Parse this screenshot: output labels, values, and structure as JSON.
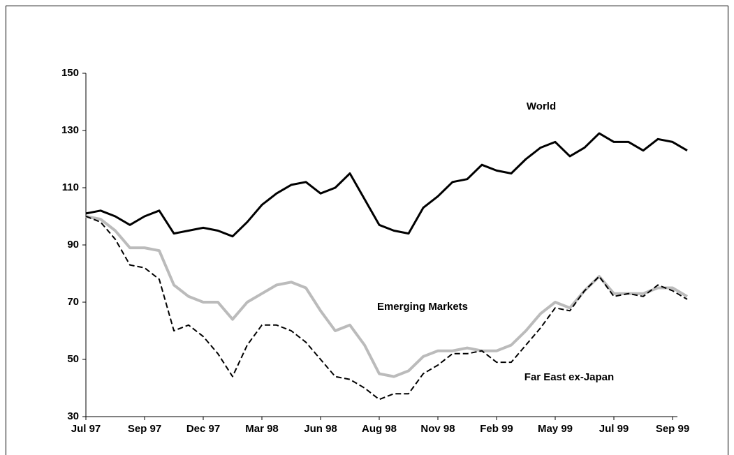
{
  "chart_data": {
    "type": "line",
    "categories": [
      "Jul 97",
      null,
      null,
      null,
      "Sep 97",
      null,
      null,
      null,
      "Dec 97",
      null,
      null,
      null,
      "Mar 98",
      null,
      null,
      null,
      "Jun 98",
      null,
      null,
      null,
      "Aug 98",
      null,
      null,
      null,
      "Nov 98",
      null,
      null,
      null,
      "Feb 99",
      null,
      null,
      null,
      "May 99",
      null,
      null,
      null,
      "Jul 99",
      null,
      null,
      null,
      "Sep 99",
      null
    ],
    "series": [
      {
        "name": "World",
        "color": "#000000",
        "dash": false,
        "width": 3,
        "values": [
          101,
          102,
          100,
          97,
          100,
          102,
          94,
          95,
          96,
          95,
          93,
          98,
          104,
          108,
          111,
          112,
          108,
          110,
          115,
          106,
          97,
          95,
          94,
          103,
          107,
          112,
          113,
          118,
          116,
          115,
          120,
          124,
          126,
          121,
          124,
          129,
          126,
          126,
          123,
          127,
          126,
          123
        ]
      },
      {
        "name": "Emerging Markets",
        "color": "#bbbbbb",
        "dash": false,
        "width": 4,
        "values": [
          100,
          99,
          95,
          89,
          89,
          88,
          76,
          72,
          70,
          70,
          64,
          70,
          73,
          76,
          77,
          75,
          67,
          60,
          62,
          55,
          45,
          44,
          46,
          51,
          53,
          53,
          54,
          53,
          53,
          55,
          60,
          66,
          70,
          68,
          74,
          79,
          73,
          73,
          73,
          75,
          75,
          72
        ]
      },
      {
        "name": "Far East ex-Japan",
        "color": "#000000",
        "dash": true,
        "width": 2,
        "values": [
          100,
          98,
          92,
          83,
          82,
          78,
          60,
          62,
          58,
          52,
          44,
          55,
          62,
          62,
          60,
          56,
          50,
          44,
          43,
          40,
          36,
          38,
          38,
          45,
          48,
          52,
          52,
          53,
          49,
          49,
          55,
          61,
          68,
          67,
          74,
          79,
          72,
          73,
          72,
          76,
          74,
          71
        ]
      }
    ],
    "ylim": [
      30,
      150
    ],
    "yticks": [
      30,
      50,
      70,
      90,
      110,
      130,
      150
    ],
    "grid": false
  }
}
